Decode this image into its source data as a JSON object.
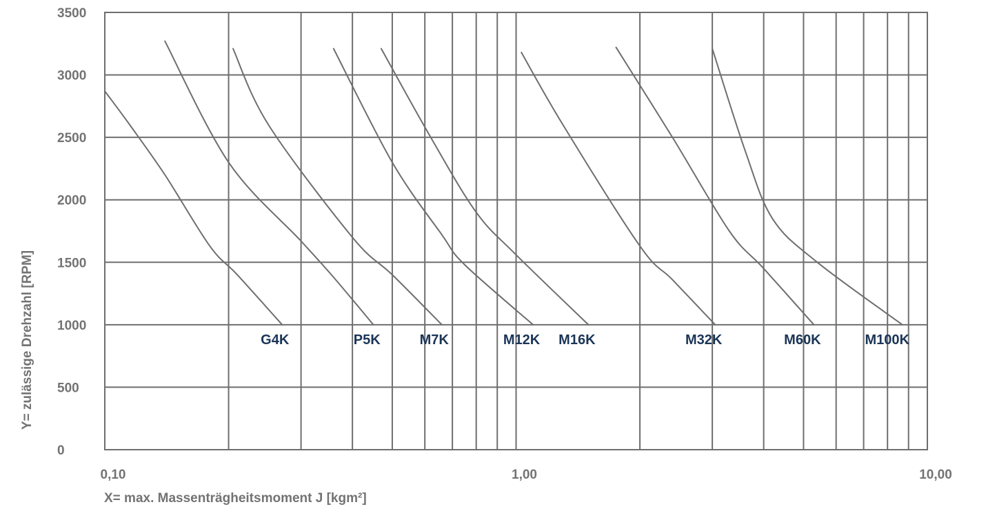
{
  "chart_data": {
    "type": "line",
    "title": "",
    "xlabel": "X= max. Massenträgheitsmoment J [kgm²]",
    "ylabel": "Y= zulässige Drehzahl [RPM]",
    "x_scale": "log",
    "xlim": [
      0.1,
      10
    ],
    "ylim": [
      0,
      3500
    ],
    "grid": true,
    "x_major_ticks": [
      {
        "value": 0.1,
        "label": "0,10"
      },
      {
        "value": 1,
        "label": "1,00"
      },
      {
        "value": 10,
        "label": "10,00"
      }
    ],
    "x_minor_gridlines": [
      0.2,
      0.3,
      0.4,
      0.5,
      0.6,
      0.7,
      0.8,
      0.9,
      2,
      3,
      4,
      5,
      6,
      7,
      8,
      9
    ],
    "y_ticks": [
      {
        "value": 0,
        "label": "0"
      },
      {
        "value": 500,
        "label": "500"
      },
      {
        "value": 1000,
        "label": "1000"
      },
      {
        "value": 1500,
        "label": "1500"
      },
      {
        "value": 2000,
        "label": "2000"
      },
      {
        "value": 2500,
        "label": "2500"
      },
      {
        "value": 3000,
        "label": "3000"
      },
      {
        "value": 3500,
        "label": "3500"
      }
    ],
    "series": [
      {
        "name": "G4K",
        "x": [
          0.1,
          0.115,
          0.14,
          0.18,
          0.21,
          0.27
        ],
        "y": [
          2870,
          2600,
          2200,
          1630,
          1400,
          1000
        ]
      },
      {
        "name": "P5K",
        "x": [
          0.14,
          0.2,
          0.3,
          0.36,
          0.45
        ],
        "y": [
          3270,
          2300,
          1670,
          1380,
          1000
        ]
      },
      {
        "name": "M7K",
        "x": [
          0.205,
          0.25,
          0.4,
          0.5,
          0.66
        ],
        "y": [
          3210,
          2600,
          1700,
          1400,
          1000
        ]
      },
      {
        "name": "M12K",
        "x": [
          0.36,
          0.5,
          0.66,
          0.75,
          1.1
        ],
        "y": [
          3210,
          2300,
          1720,
          1480,
          1000
        ]
      },
      {
        "name": "M16K",
        "x": [
          0.47,
          0.62,
          0.8,
          1.0,
          1.5
        ],
        "y": [
          3210,
          2500,
          1900,
          1560,
          1000
        ]
      },
      {
        "name": "M32K",
        "x": [
          1.03,
          1.3,
          2.0,
          2.4,
          3.05
        ],
        "y": [
          3180,
          2600,
          1630,
          1360,
          1000
        ]
      },
      {
        "name": "M60K",
        "x": [
          1.75,
          2.4,
          3.3,
          4.0,
          5.3
        ],
        "y": [
          3220,
          2500,
          1750,
          1450,
          1000
        ]
      },
      {
        "name": "M100K",
        "x": [
          3.0,
          3.6,
          4.2,
          5.4,
          8.7
        ],
        "y": [
          3210,
          2400,
          1850,
          1500,
          1000
        ]
      }
    ],
    "colors": {
      "grid": "#6e6e6e",
      "curve": "#6e6e6e",
      "tick_text": "#737373",
      "series_label_text": "#1b3557"
    }
  }
}
